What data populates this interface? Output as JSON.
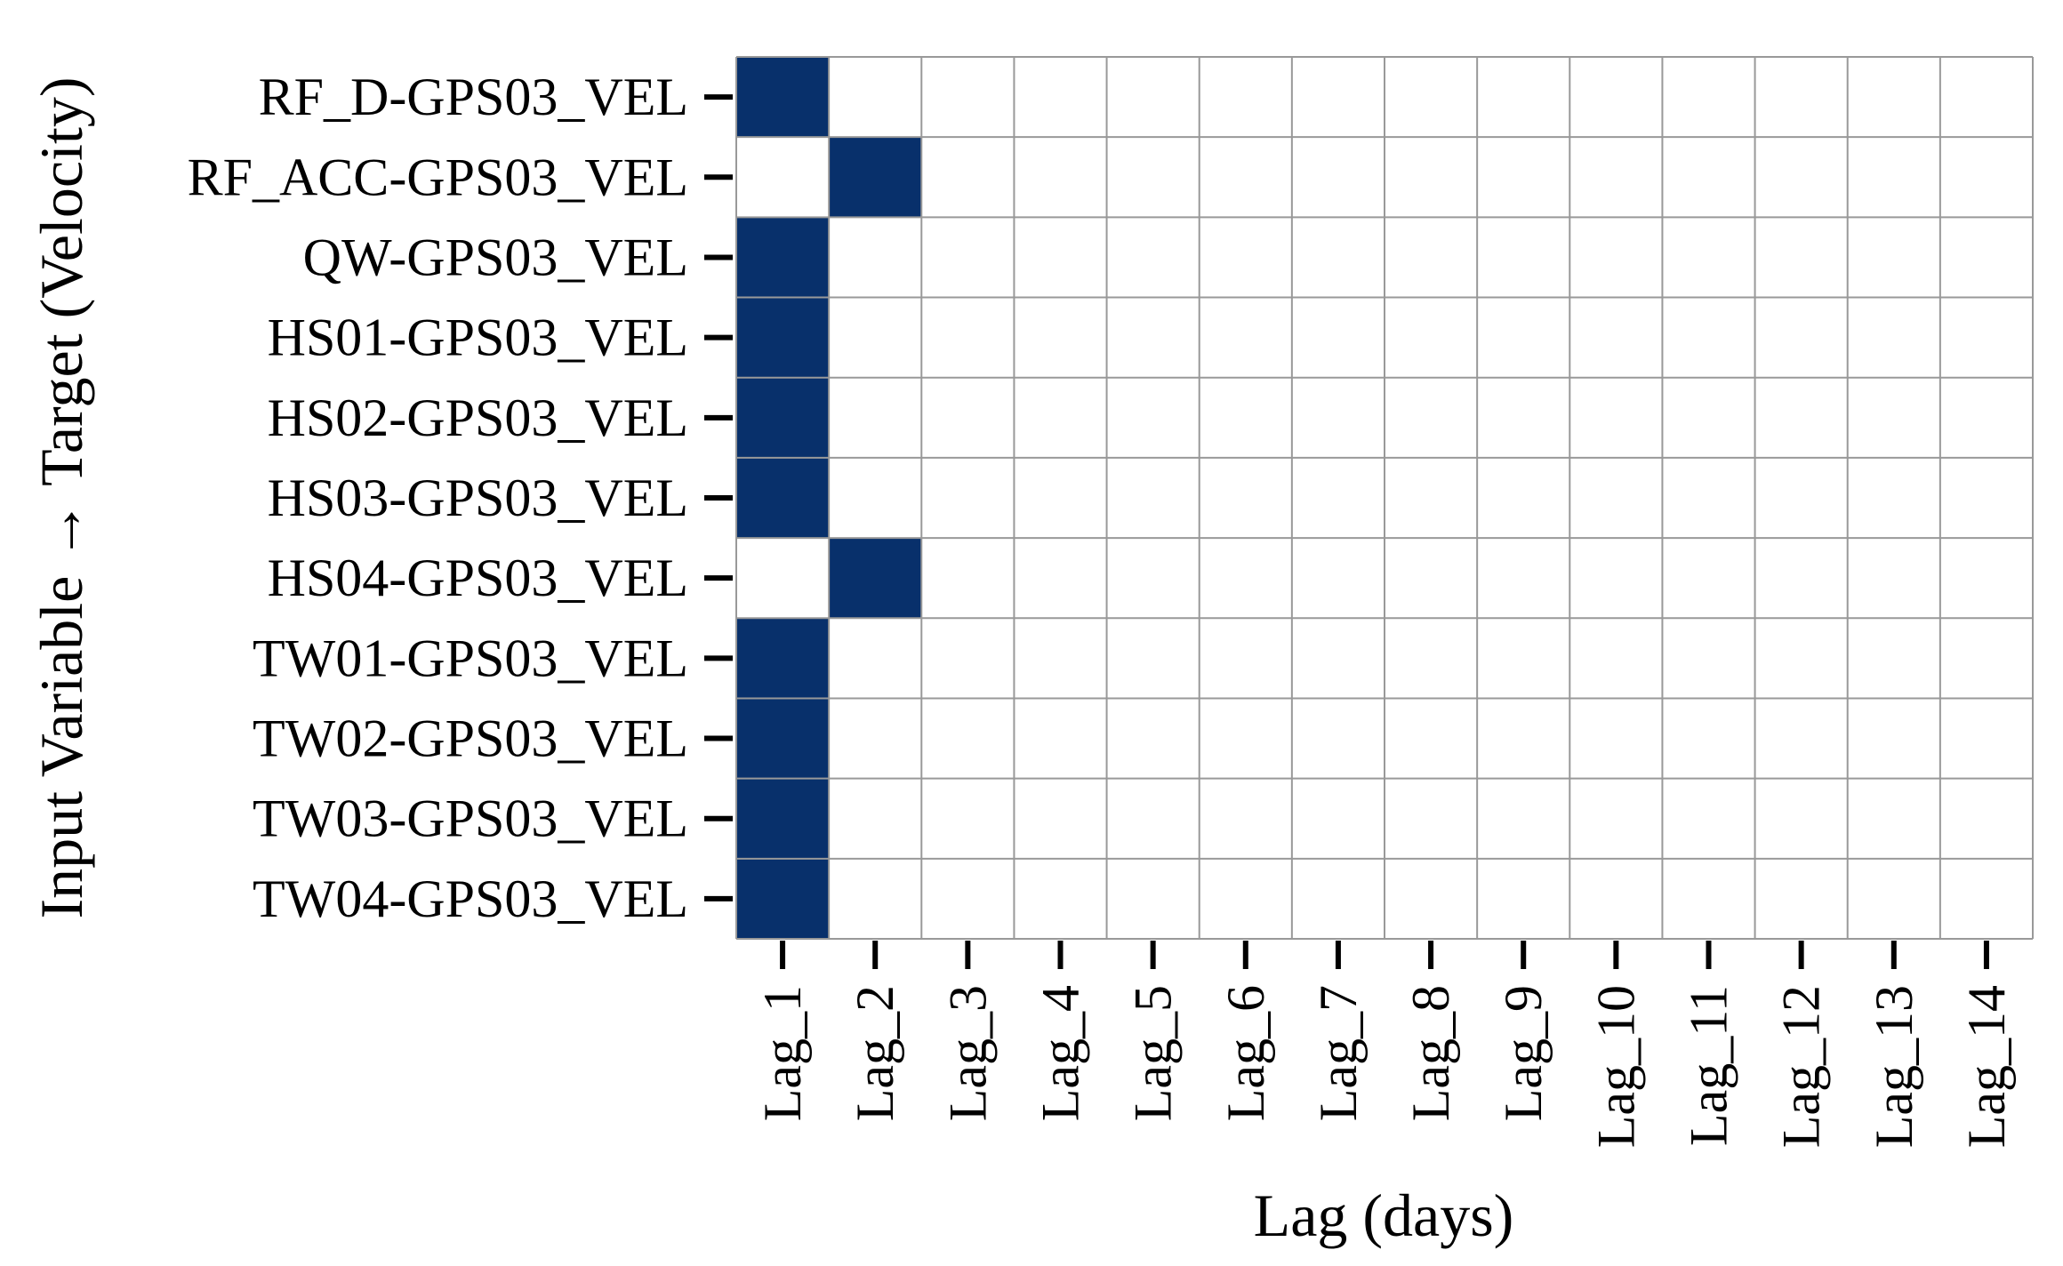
{
  "chart_data": {
    "type": "heatmap",
    "xlabel": "Lag (days)",
    "ylabel": "Input Variable → Target (Velocity)",
    "columns": [
      "Lag_1",
      "Lag_2",
      "Lag_3",
      "Lag_4",
      "Lag_5",
      "Lag_6",
      "Lag_7",
      "Lag_8",
      "Lag_9",
      "Lag_10",
      "Lag_11",
      "Lag_12",
      "Lag_13",
      "Lag_14"
    ],
    "rows": [
      "RF_D-GPS03_VEL",
      "RF_ACC-GPS03_VEL",
      "QW-GPS03_VEL",
      "HS01-GPS03_VEL",
      "HS02-GPS03_VEL",
      "HS03-GPS03_VEL",
      "HS04-GPS03_VEL",
      "TW01-GPS03_VEL",
      "TW02-GPS03_VEL",
      "TW03-GPS03_VEL",
      "TW04-GPS03_VEL"
    ],
    "values": [
      [
        1,
        0,
        0,
        0,
        0,
        0,
        0,
        0,
        0,
        0,
        0,
        0,
        0,
        0
      ],
      [
        0,
        1,
        0,
        0,
        0,
        0,
        0,
        0,
        0,
        0,
        0,
        0,
        0,
        0
      ],
      [
        1,
        0,
        0,
        0,
        0,
        0,
        0,
        0,
        0,
        0,
        0,
        0,
        0,
        0
      ],
      [
        1,
        0,
        0,
        0,
        0,
        0,
        0,
        0,
        0,
        0,
        0,
        0,
        0,
        0
      ],
      [
        1,
        0,
        0,
        0,
        0,
        0,
        0,
        0,
        0,
        0,
        0,
        0,
        0,
        0
      ],
      [
        1,
        0,
        0,
        0,
        0,
        0,
        0,
        0,
        0,
        0,
        0,
        0,
        0,
        0
      ],
      [
        0,
        1,
        0,
        0,
        0,
        0,
        0,
        0,
        0,
        0,
        0,
        0,
        0,
        0
      ],
      [
        1,
        0,
        0,
        0,
        0,
        0,
        0,
        0,
        0,
        0,
        0,
        0,
        0,
        0
      ],
      [
        1,
        0,
        0,
        0,
        0,
        0,
        0,
        0,
        0,
        0,
        0,
        0,
        0,
        0
      ],
      [
        1,
        0,
        0,
        0,
        0,
        0,
        0,
        0,
        0,
        0,
        0,
        0,
        0,
        0
      ],
      [
        1,
        0,
        0,
        0,
        0,
        0,
        0,
        0,
        0,
        0,
        0,
        0,
        0,
        0
      ]
    ],
    "colors": {
      "on": "#08306b",
      "off": "#ffffff",
      "grid": "#999999"
    },
    "colorbar": false,
    "grid": true
  }
}
